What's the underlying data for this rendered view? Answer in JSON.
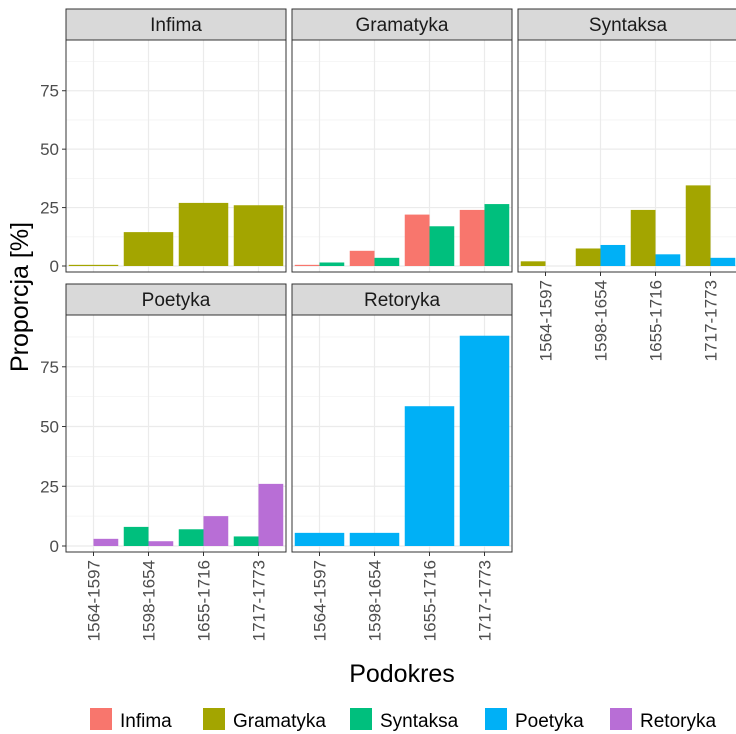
{
  "chart_data": {
    "type": "bar",
    "xlabel": "Podokres",
    "ylabel": "Proporcja [%]",
    "ylim": [
      0,
      95
    ],
    "y_ticks": [
      0,
      25,
      50,
      75
    ],
    "categories": [
      "1564-1597",
      "1598-1654",
      "1655-1716",
      "1717-1773"
    ],
    "grid": true,
    "legend_position": "bottom",
    "series_colors": {
      "Infima": "#F8766D",
      "Gramatyka": "#A3A500",
      "Syntaksa": "#00BF7D",
      "Poetyka": "#00B0F6",
      "Retoryka": "#B86ED6"
    },
    "legend": [
      "Infima",
      "Gramatyka",
      "Syntaksa",
      "Poetyka",
      "Retoryka"
    ],
    "panels": [
      {
        "title": "Infima",
        "series": [
          {
            "name": "Gramatyka",
            "values": [
              0.5,
              14.5,
              27,
              26
            ]
          }
        ]
      },
      {
        "title": "Gramatyka",
        "series": [
          {
            "name": "Infima",
            "values": [
              0.5,
              6.5,
              22,
              24
            ]
          },
          {
            "name": "Syntaksa",
            "values": [
              1.5,
              3.5,
              17,
              26.5
            ]
          }
        ]
      },
      {
        "title": "Syntaksa",
        "series": [
          {
            "name": "Gramatyka",
            "values": [
              2,
              7.5,
              24,
              34.5
            ]
          },
          {
            "name": "Poetyka",
            "values": [
              0,
              9,
              5,
              3.5
            ]
          }
        ]
      },
      {
        "title": "Poetyka",
        "series": [
          {
            "name": "Syntaksa",
            "values": [
              0,
              8,
              7,
              4
            ]
          },
          {
            "name": "Retoryka",
            "values": [
              3,
              2,
              12.5,
              26
            ]
          }
        ]
      },
      {
        "title": "Retoryka",
        "series": [
          {
            "name": "Poetyka",
            "values": [
              5.5,
              5.5,
              58.5,
              88
            ]
          }
        ]
      }
    ]
  }
}
